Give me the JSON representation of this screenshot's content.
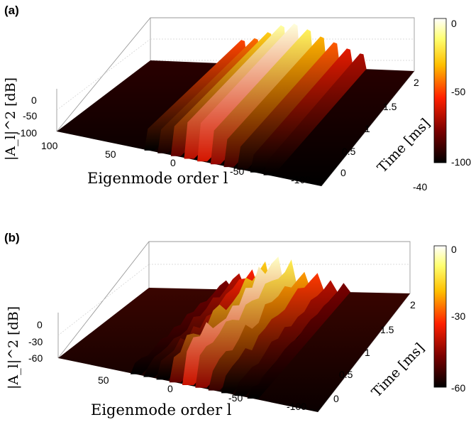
{
  "chart_data": [
    {
      "panel": "(a)",
      "type": "surface",
      "xlabel": "Eigenmode order l",
      "ylabel": "Time [ms]",
      "zlabel": "|A_l|^2 [dB]",
      "x_ticks": [
        "100",
        "50",
        "0",
        "-50",
        "-100"
      ],
      "y_ticks": [
        "0",
        "0.5",
        "1",
        "1.5",
        "2"
      ],
      "z_ticks": [
        "0",
        "-50",
        "-100"
      ],
      "xlim": [
        100,
        -100
      ],
      "ylim": [
        0,
        2
      ],
      "zlim": [
        -100,
        0
      ],
      "colorbar_ticks": [
        "0",
        "-50",
        "-100"
      ],
      "colorbar_extra": "-40",
      "colormap": "hot",
      "colors": {
        "high": "#ffffff",
        "mid": "#ff2000",
        "low": "#000000"
      },
      "series": [
        {
          "mode": 30,
          "level_db": -45
        },
        {
          "mode": 20,
          "level_db": -40
        },
        {
          "mode": 10,
          "level_db": -25
        },
        {
          "mode": 0,
          "level_db": -8
        },
        {
          "mode": -10,
          "level_db": -3
        },
        {
          "mode": -20,
          "level_db": -15
        },
        {
          "mode": -30,
          "level_db": -30
        },
        {
          "mode": -40,
          "level_db": -42
        },
        {
          "mode": -50,
          "level_db": -55
        },
        {
          "mode": -60,
          "level_db": -65
        }
      ]
    },
    {
      "panel": "(b)",
      "type": "surface",
      "xlabel": "Eigenmode order l",
      "ylabel": "Time [ms]",
      "zlabel": "|A_l|^2 [dB]",
      "x_ticks": [
        "50",
        "0",
        "-50",
        "-100"
      ],
      "y_ticks": [
        "0",
        "0.5",
        "1",
        "1.5",
        "2"
      ],
      "z_ticks": [
        "0",
        "-30",
        "-60"
      ],
      "xlim": [
        100,
        -100
      ],
      "ylim": [
        0,
        2
      ],
      "zlim": [
        -60,
        0
      ],
      "colorbar_ticks": [
        "0",
        "-30",
        "-60"
      ],
      "colormap": "hot",
      "colors": {
        "high": "#ffffff",
        "mid": "#ff2000",
        "low": "#000000"
      },
      "series": [
        {
          "mode": 40,
          "level_db": -45
        },
        {
          "mode": 30,
          "level_db": -38
        },
        {
          "mode": 20,
          "level_db": -30
        },
        {
          "mode": 10,
          "level_db": -15
        },
        {
          "mode": 0,
          "level_db": -3
        },
        {
          "mode": -10,
          "level_db": -10
        },
        {
          "mode": -20,
          "level_db": -20
        },
        {
          "mode": -30,
          "level_db": -28
        },
        {
          "mode": -40,
          "level_db": -38
        },
        {
          "mode": -50,
          "level_db": -45
        }
      ]
    }
  ]
}
